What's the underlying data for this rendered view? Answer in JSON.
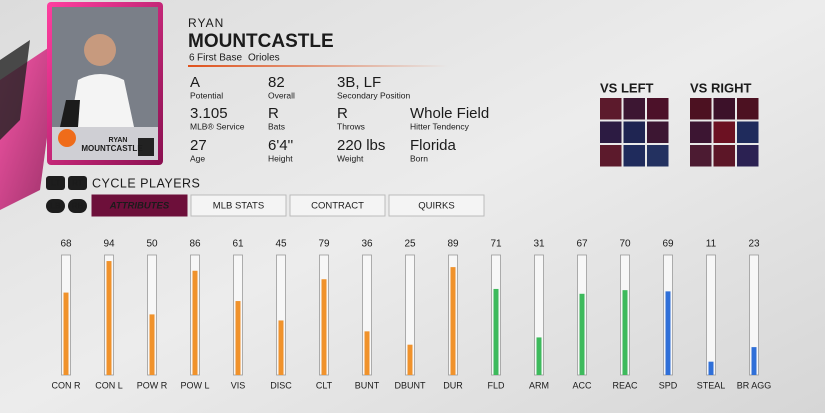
{
  "player_card": {
    "first_name": "RYAN",
    "last_name": "MOUNTCASTLE"
  },
  "header": {
    "first_name": "RYAN",
    "last_name": "MOUNTCASTLE",
    "number": "6",
    "position": "First Base",
    "team": "Orioles"
  },
  "info": [
    [
      {
        "value": "A",
        "label": "Potential"
      },
      {
        "value": "82",
        "label": "Overall"
      },
      {
        "value": "3B, LF",
        "label": "Secondary Position"
      }
    ],
    [
      {
        "value": "3.105",
        "label": "MLB® Service"
      },
      {
        "value": "R",
        "label": "Bats"
      },
      {
        "value": "R",
        "label": "Throws"
      },
      {
        "value": "Whole Field",
        "label": "Hitter Tendency"
      }
    ],
    [
      {
        "value": "27",
        "label": "Age"
      },
      {
        "value": "6'4''",
        "label": "Height"
      },
      {
        "value": "220 lbs",
        "label": "Weight"
      },
      {
        "value": "Florida",
        "label": "Born"
      }
    ]
  ],
  "splits": [
    {
      "title": "VS LEFT",
      "zones": [
        "#5c1a2c",
        "#3c1632",
        "#4c1129",
        "#2c1b42",
        "#1f2552",
        "#3c1632",
        "#5c1a2c",
        "#1f2b5c",
        "#233160"
      ]
    },
    {
      "title": "VS RIGHT",
      "zones": [
        "#4c1121",
        "#3c1129",
        "#4c1121",
        "#3c1532",
        "#6c1122",
        "#1f2b5c",
        "#4c1b32",
        "#5c1627",
        "#2b2152"
      ]
    }
  ],
  "cycle": {
    "buttons": [
      "LT",
      "RT"
    ],
    "label": "CYCLE PLAYERS"
  },
  "tabs": {
    "buttons": [
      "LB",
      "RB"
    ],
    "items": [
      "ATTRIBUTES",
      "MLB STATS",
      "CONTRACT",
      "QUIRKS"
    ],
    "active": 0
  },
  "attributes": {
    "range": [
      0,
      99
    ],
    "items": [
      {
        "label": "CON R",
        "value": 68,
        "color": "#f0922b"
      },
      {
        "label": "CON L",
        "value": 94,
        "color": "#f0922b"
      },
      {
        "label": "POW R",
        "value": 50,
        "color": "#f0922b"
      },
      {
        "label": "POW L",
        "value": 86,
        "color": "#f0922b"
      },
      {
        "label": "VIS",
        "value": 61,
        "color": "#f0922b"
      },
      {
        "label": "DISC",
        "value": 45,
        "color": "#f0922b"
      },
      {
        "label": "CLT",
        "value": 79,
        "color": "#f0922b"
      },
      {
        "label": "BUNT",
        "value": 36,
        "color": "#f0922b"
      },
      {
        "label": "DBUNT",
        "value": 25,
        "color": "#f0922b"
      },
      {
        "label": "DUR",
        "value": 89,
        "color": "#f0922b"
      },
      {
        "label": "FLD",
        "value": 71,
        "color": "#3dba5c"
      },
      {
        "label": "ARM",
        "value": 31,
        "color": "#3dba5c"
      },
      {
        "label": "ACC",
        "value": 67,
        "color": "#3dba5c"
      },
      {
        "label": "REAC",
        "value": 70,
        "color": "#3dba5c"
      },
      {
        "label": "SPD",
        "value": 69,
        "color": "#2f6fd8"
      },
      {
        "label": "STEAL",
        "value": 11,
        "color": "#2f6fd8"
      },
      {
        "label": "BR AGG",
        "value": 23,
        "color": "#2f6fd8"
      }
    ]
  }
}
